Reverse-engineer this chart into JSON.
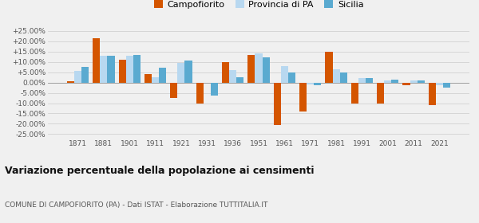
{
  "years": [
    1871,
    1881,
    1901,
    1911,
    1921,
    1931,
    1936,
    1951,
    1961,
    1971,
    1981,
    1991,
    2001,
    2011,
    2021
  ],
  "campofiorito": [
    0.5,
    21.5,
    11.0,
    4.0,
    -7.5,
    -10.0,
    10.0,
    13.5,
    -20.5,
    -14.0,
    15.0,
    -10.0,
    -10.0,
    -1.5,
    -11.0
  ],
  "provincia_pa": [
    5.5,
    13.0,
    13.0,
    2.5,
    9.5,
    0.0,
    6.0,
    14.0,
    8.0,
    -1.0,
    6.5,
    2.0,
    1.0,
    1.0,
    -1.5
  ],
  "sicilia": [
    7.5,
    13.0,
    13.5,
    7.0,
    10.5,
    -6.5,
    2.5,
    12.0,
    5.0,
    -1.5,
    5.0,
    2.0,
    1.5,
    1.0,
    -2.5
  ],
  "color_campofiorito": "#d45500",
  "color_provincia": "#b8d8f0",
  "color_sicilia": "#5aaad0",
  "title": "Variazione percentuale della popolazione ai censimenti",
  "subtitle": "COMUNE DI CAMPOFIORITO (PA) - Dati ISTAT - Elaborazione TUTTITALIA.IT",
  "yticks": [
    -25,
    -20,
    -15,
    -10,
    -5,
    0,
    5,
    10,
    15,
    20,
    25
  ],
  "ylim": [
    -27,
    27
  ],
  "background_color": "#f0f0f0",
  "legend_labels": [
    "Campofiorito",
    "Provincia di PA",
    "Sicilia"
  ]
}
